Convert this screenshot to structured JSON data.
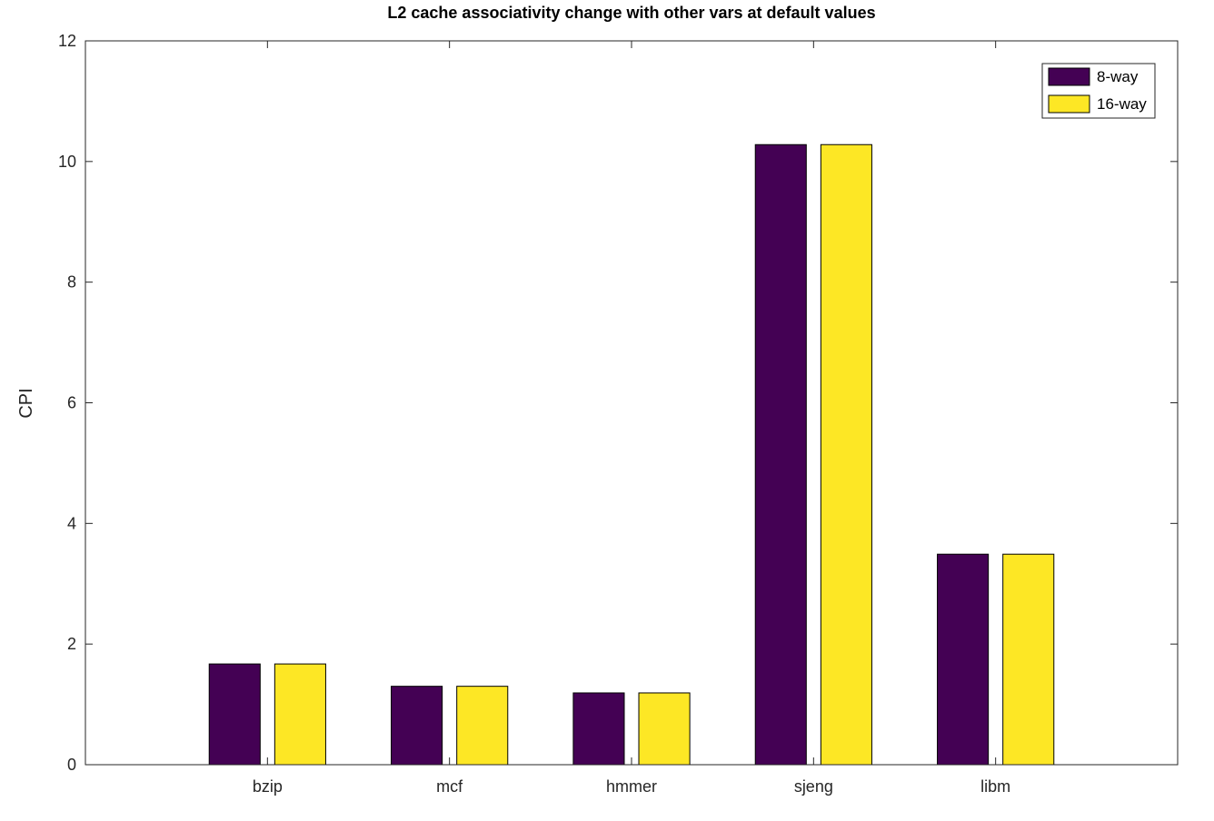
{
  "chart_data": {
    "type": "bar",
    "title": "L2 cache associativity change with other vars at default values",
    "xlabel": "",
    "ylabel": "CPI",
    "categories": [
      "bzip",
      "mcf",
      "hmmer",
      "sjeng",
      "libm"
    ],
    "series": [
      {
        "name": "8-way",
        "color": "#440154",
        "values": [
          1.67,
          1.3,
          1.19,
          10.28,
          3.49
        ]
      },
      {
        "name": "16-way",
        "color": "#fde725",
        "values": [
          1.67,
          1.3,
          1.19,
          10.28,
          3.49
        ]
      }
    ],
    "ylim": [
      0,
      12
    ],
    "yticks": [
      "0",
      "2",
      "4",
      "6",
      "8",
      "10",
      "12"
    ],
    "grid": false,
    "legend_position": "top-right"
  }
}
